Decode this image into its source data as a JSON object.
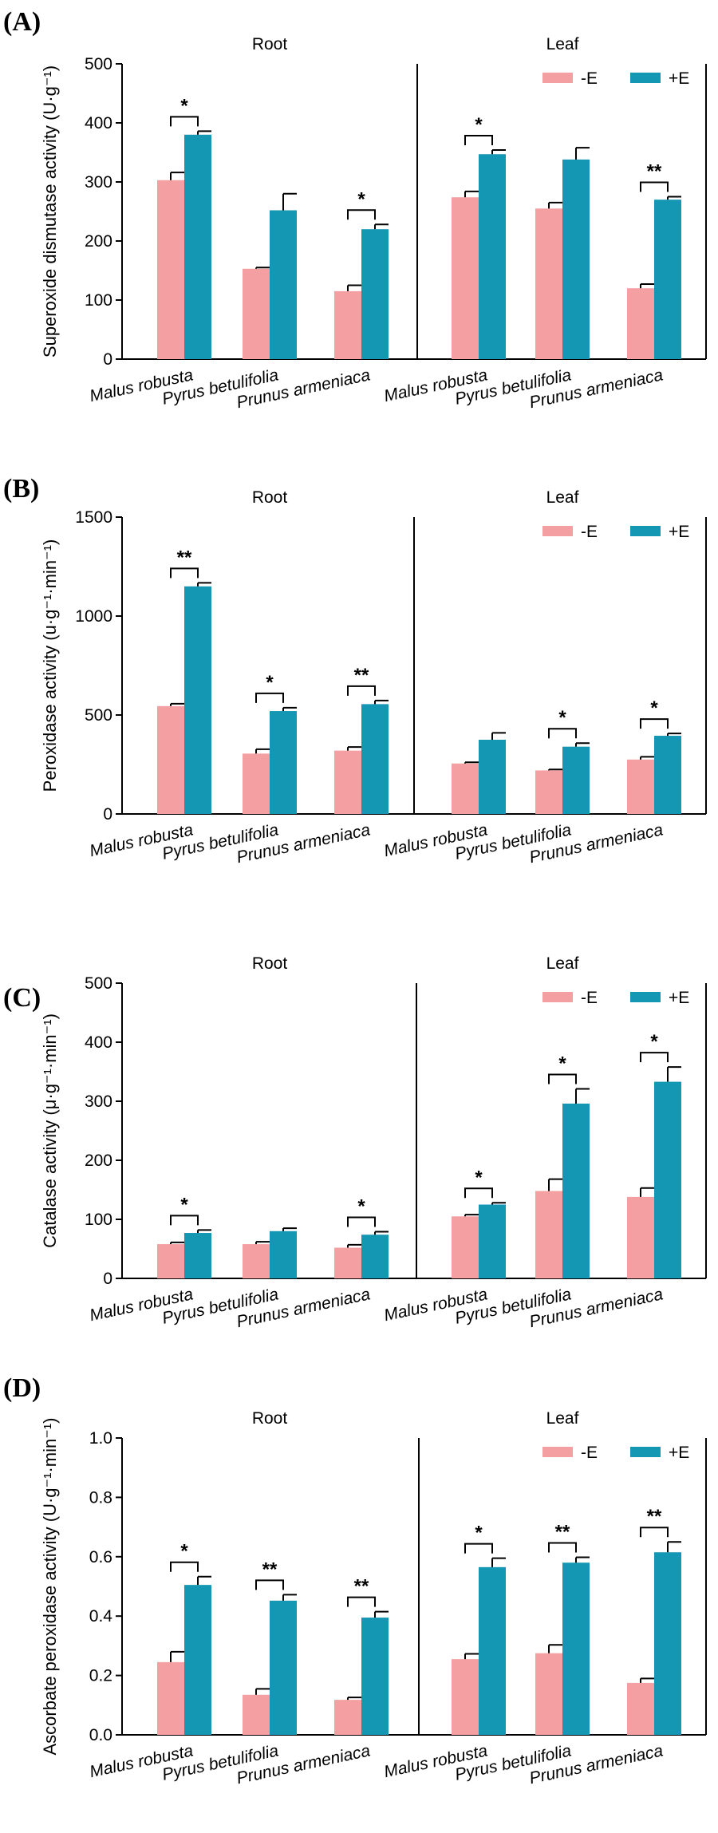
{
  "colors": {
    "minus_e": "#F4A0A3",
    "plus_e": "#1497B3"
  },
  "chart_data": [
    {
      "type": "bar",
      "panel": "(A)",
      "ylabel": "Superoxide dismutase activity (U·g⁻¹)",
      "ylim": [
        0,
        500
      ],
      "yticks": [
        "0",
        "100",
        "200",
        "300",
        "400",
        "500"
      ],
      "groups": [
        "Root",
        "Leaf"
      ],
      "categories": [
        "Malus robusta",
        "Pyrus betulifolia",
        "Prunus armeniaca"
      ],
      "legend": [
        "-E",
        "+E"
      ],
      "series": [
        {
          "name": "-E",
          "values": [
            [
              303,
              153,
              115
            ],
            [
              274,
              255,
              120
            ]
          ],
          "errors": [
            [
              13,
              2,
              10
            ],
            [
              10,
              10,
              7
            ]
          ]
        },
        {
          "name": "+E",
          "values": [
            [
              380,
              252,
              220
            ],
            [
              347,
              338,
              270
            ]
          ],
          "errors": [
            [
              6,
              28,
              8
            ],
            [
              7,
              20,
              5
            ]
          ]
        }
      ],
      "significance": [
        [
          "*",
          "",
          "*"
        ],
        [
          "*",
          "",
          "**"
        ]
      ]
    },
    {
      "type": "bar",
      "panel": "(B)",
      "ylabel": "Peroxidase activity (u·g⁻¹·min⁻¹)",
      "ylim": [
        0,
        1500
      ],
      "yticks": [
        "0",
        "500",
        "1000",
        "1500"
      ],
      "groups": [
        "Root",
        "Leaf"
      ],
      "categories": [
        "Malus robusta",
        "Pyrus betulifolia",
        "Prunus armeniaca"
      ],
      "legend": [
        "-E",
        "+E"
      ],
      "series": [
        {
          "name": "-E",
          "values": [
            [
              545,
              305,
              320
            ],
            [
              255,
              220,
              275
            ]
          ],
          "errors": [
            [
              12,
              22,
              18
            ],
            [
              6,
              5,
              14
            ]
          ]
        },
        {
          "name": "+E",
          "values": [
            [
              1150,
              520,
              555
            ],
            [
              375,
              340,
              395
            ]
          ],
          "errors": [
            [
              18,
              17,
              18
            ],
            [
              35,
              18,
              12
            ]
          ]
        }
      ],
      "significance": [
        [
          "**",
          "*",
          "**"
        ],
        [
          "",
          "*",
          "*"
        ]
      ]
    },
    {
      "type": "bar",
      "panel": "(C)",
      "ylabel": "Catalase activity (μ·g⁻¹·min⁻¹)",
      "ylim": [
        0,
        500
      ],
      "yticks": [
        "0",
        "100",
        "200",
        "300",
        "400",
        "500"
      ],
      "groups": [
        "Root",
        "Leaf"
      ],
      "categories": [
        "Malus robusta",
        "Pyrus betulifolia",
        "Prunus armeniaca"
      ],
      "legend": [
        "-E",
        "+E"
      ],
      "series": [
        {
          "name": "-E",
          "values": [
            [
              58,
              58,
              52
            ],
            [
              105,
              148,
              138
            ]
          ],
          "errors": [
            [
              3,
              4,
              5
            ],
            [
              3,
              20,
              15
            ]
          ]
        },
        {
          "name": "+E",
          "values": [
            [
              77,
              80,
              74
            ],
            [
              125,
              296,
              333
            ]
          ],
          "errors": [
            [
              5,
              5,
              5
            ],
            [
              3,
              25,
              25
            ]
          ]
        }
      ],
      "significance": [
        [
          "*",
          "",
          "*"
        ],
        [
          "*",
          "*",
          "*"
        ]
      ]
    },
    {
      "type": "bar",
      "panel": "(D)",
      "ylabel": "Ascorbate peroxidase activity (U·g⁻¹·min⁻¹)",
      "ylim": [
        0,
        1.0
      ],
      "yticks": [
        "0.0",
        "0.2",
        "0.4",
        "0.6",
        "0.8",
        "1.0"
      ],
      "groups": [
        "Root",
        "Leaf"
      ],
      "categories": [
        "Malus robusta",
        "Pyrus betulifolia",
        "Prunus armeniaca"
      ],
      "legend": [
        "-E",
        "+E"
      ],
      "series": [
        {
          "name": "-E",
          "values": [
            [
              0.245,
              0.135,
              0.118
            ],
            [
              0.255,
              0.275,
              0.175
            ]
          ],
          "errors": [
            [
              0.035,
              0.02,
              0.008
            ],
            [
              0.018,
              0.028,
              0.015
            ]
          ]
        },
        {
          "name": "+E",
          "values": [
            [
              0.505,
              0.452,
              0.395
            ],
            [
              0.565,
              0.58,
              0.615
            ]
          ],
          "errors": [
            [
              0.028,
              0.02,
              0.02
            ],
            [
              0.03,
              0.018,
              0.035
            ]
          ]
        }
      ],
      "significance": [
        [
          "*",
          "**",
          "**"
        ],
        [
          "*",
          "**",
          "**"
        ]
      ]
    }
  ]
}
